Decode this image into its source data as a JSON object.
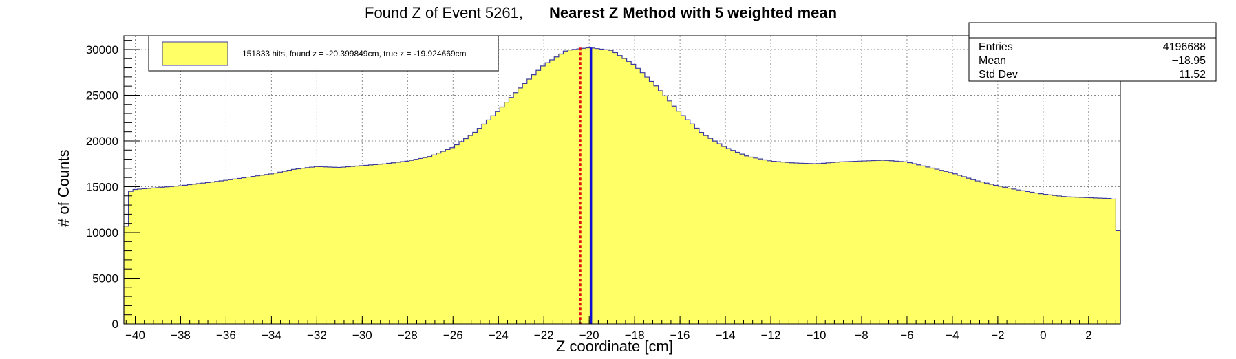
{
  "chart_data": {
    "type": "histogram",
    "title_part1": "Found Z of Event 5261,",
    "title_part2": "Nearest Z Method with 5 weighted mean",
    "xlabel": "Z coordinate [cm]",
    "ylabel": "# of Counts",
    "xlim": [
      -40.5,
      3.4
    ],
    "ylim": [
      0,
      31500
    ],
    "x_ticks": [
      -40,
      -38,
      -36,
      -34,
      -32,
      -30,
      -28,
      -26,
      -24,
      -22,
      -20,
      -18,
      -16,
      -14,
      -12,
      -10,
      -8,
      -6,
      -4,
      -2,
      0,
      2
    ],
    "y_ticks": [
      0,
      5000,
      10000,
      15000,
      20000,
      25000,
      30000
    ],
    "grid": true,
    "fill_color": "#ffff66",
    "line_color": "#3a3aa0",
    "found_z_line": {
      "value": -20.399849,
      "color": "#e01010",
      "style": "dashed"
    },
    "true_z_line": {
      "value": -19.924669,
      "color": "#1010d0",
      "style": "solid"
    },
    "legend": {
      "placement": "top-left",
      "entry": "151833 hits, found z = -20.399849cm, true z = -19.924669cm"
    },
    "stats_box": {
      "placement": "top-right",
      "rows": [
        {
          "label": "Entries",
          "value": "4196688"
        },
        {
          "label": "Mean",
          "value": "−18.95"
        },
        {
          "label": "Std Dev",
          "value": "11.52"
        }
      ]
    },
    "profile_points": [
      [
        -40.5,
        7000
      ],
      [
        -40.3,
        14400
      ],
      [
        -40.0,
        14700
      ],
      [
        -39.0,
        14900
      ],
      [
        -38.0,
        15100
      ],
      [
        -36.0,
        15700
      ],
      [
        -34.0,
        16400
      ],
      [
        -33.0,
        16900
      ],
      [
        -32.0,
        17200
      ],
      [
        -31.0,
        17100
      ],
      [
        -30.0,
        17300
      ],
      [
        -29.0,
        17500
      ],
      [
        -28.0,
        17800
      ],
      [
        -27.0,
        18300
      ],
      [
        -26.0,
        19300
      ],
      [
        -25.0,
        21000
      ],
      [
        -24.0,
        23300
      ],
      [
        -23.0,
        25900
      ],
      [
        -22.0,
        28300
      ],
      [
        -21.0,
        29900
      ],
      [
        -20.0,
        30200
      ],
      [
        -19.0,
        29900
      ],
      [
        -18.0,
        28300
      ],
      [
        -17.0,
        25900
      ],
      [
        -16.0,
        23100
      ],
      [
        -15.0,
        20800
      ],
      [
        -14.0,
        19300
      ],
      [
        -13.0,
        18300
      ],
      [
        -12.0,
        17800
      ],
      [
        -11.0,
        17600
      ],
      [
        -10.0,
        17500
      ],
      [
        -9.0,
        17700
      ],
      [
        -7.0,
        17900
      ],
      [
        -6.0,
        17700
      ],
      [
        -5.0,
        17100
      ],
      [
        -4.0,
        16500
      ],
      [
        -3.0,
        15700
      ],
      [
        -2.0,
        15100
      ],
      [
        -1.0,
        14600
      ],
      [
        0.0,
        14200
      ],
      [
        1.0,
        13900
      ],
      [
        2.0,
        13800
      ],
      [
        3.0,
        13700
      ],
      [
        3.2,
        13600
      ],
      [
        3.4,
        6800
      ]
    ]
  }
}
